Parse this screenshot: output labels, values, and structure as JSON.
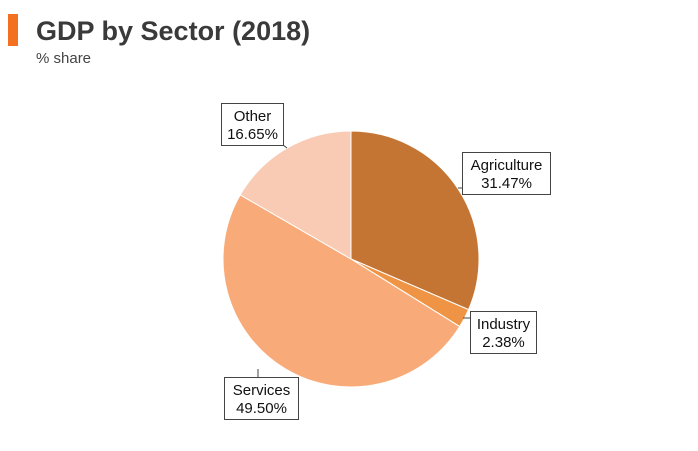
{
  "header": {
    "title": "GDP by Sector (2018)",
    "subtitle": "% share",
    "accent_color": "#f37021"
  },
  "chart_data": {
    "type": "pie",
    "title": "GDP by Sector (2018)",
    "subtitle": "% share",
    "start_angle_deg": 0,
    "direction": "clockwise",
    "slices": [
      {
        "label": "Agriculture",
        "value": 31.47,
        "display": "31.47%",
        "color": "#c47433"
      },
      {
        "label": "Industry",
        "value": 2.38,
        "display": "2.38%",
        "color": "#ef9445"
      },
      {
        "label": "Services",
        "value": 49.5,
        "display": "49.50%",
        "color": "#f8ab78"
      },
      {
        "label": "Other",
        "value": 16.65,
        "display": "16.65%",
        "color": "#f9cbb4"
      }
    ]
  }
}
